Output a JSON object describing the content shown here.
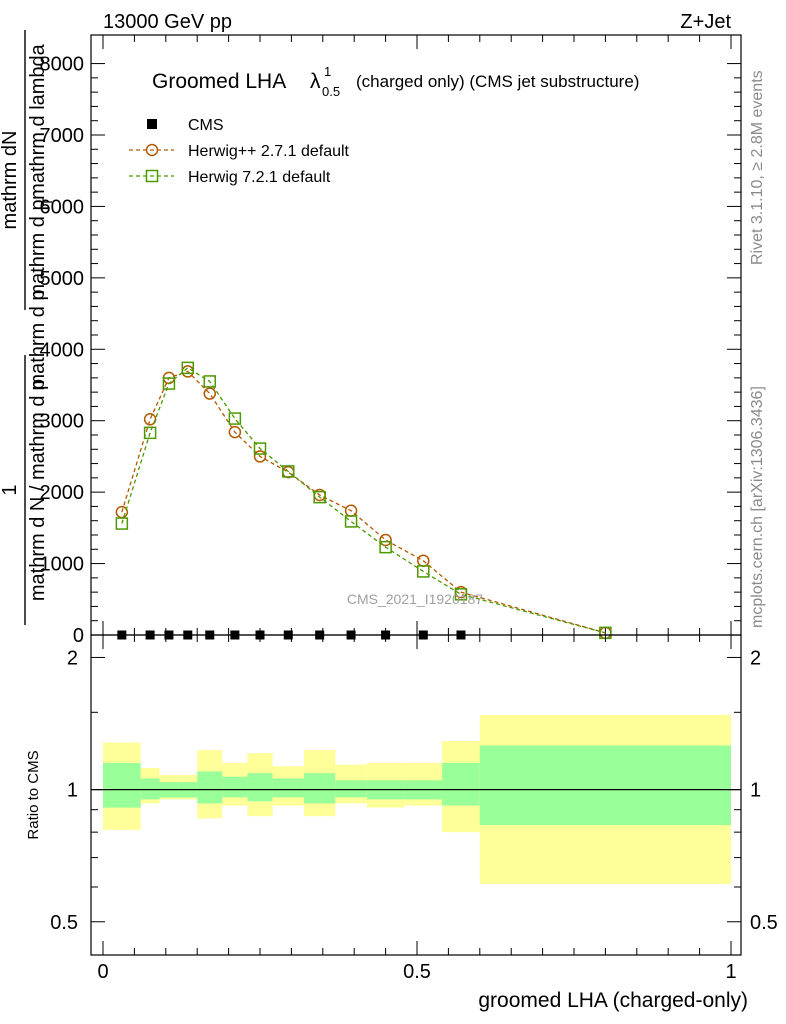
{
  "header": {
    "left": "13000 GeV pp",
    "right": "Z+Jet"
  },
  "side_labels": {
    "rivet": "Rivet 3.1.10, ≥ 2.8M events",
    "mcplots": "mcplots.cern.ch [arXiv:1306.3436]"
  },
  "main_ylabel": {
    "numerator_top": "1",
    "denominator_top": "mathrm d N / mathrm d p",
    "numerator_right": "mathrm dN",
    "denominator_right": "mathrm d p",
    "sub_t": "T",
    "tail": "mathrm d lambda",
    "frag_a": "mathrm d p",
    "frag_b": "mathrm d p"
  },
  "watermark": "CMS_2021_I1920187",
  "chart_data": [
    {
      "type": "line",
      "title": {
        "main": "Groomed LHA",
        "lambda": "λ",
        "sup": "1",
        "sub": "0.5",
        "suffix": "(charged only) (CMS jet substructure)"
      },
      "xlim": [
        0,
        1
      ],
      "ylim": [
        0,
        8400
      ],
      "x_ticks": [
        0,
        0.5,
        1
      ],
      "y_ticks": [
        0,
        1000,
        2000,
        3000,
        4000,
        5000,
        6000,
        7000,
        8000
      ],
      "y_tick_labels": [
        "0",
        "1000",
        "2000",
        "3000",
        "4000",
        "5000",
        "6000",
        "7000",
        "8000"
      ],
      "legend": [
        "CMS",
        "Herwig++ 2.7.1 default",
        "Herwig 7.2.1 default"
      ],
      "legend_position": "top-left",
      "series": [
        {
          "name": "CMS",
          "color": "#000000",
          "marker": "square-filled",
          "x": [
            0.03,
            0.075,
            0.105,
            0.135,
            0.17,
            0.21,
            0.25,
            0.295,
            0.345,
            0.395,
            0.45,
            0.51,
            0.57
          ],
          "y": [
            0,
            0,
            0,
            0,
            0,
            0,
            0,
            0,
            0,
            0,
            0,
            0,
            0
          ]
        },
        {
          "name": "Herwig++ 2.7.1 default",
          "color": "#b35900",
          "marker": "circle-open",
          "x": [
            0.03,
            0.075,
            0.105,
            0.135,
            0.17,
            0.21,
            0.25,
            0.295,
            0.345,
            0.395,
            0.45,
            0.51,
            0.57,
            0.8
          ],
          "y": [
            1720,
            3020,
            3600,
            3690,
            3380,
            2840,
            2500,
            2280,
            1960,
            1740,
            1330,
            1040,
            600,
            30
          ]
        },
        {
          "name": "Herwig 7.2.1 default",
          "color": "#4d9900",
          "marker": "square-open",
          "x": [
            0.03,
            0.075,
            0.105,
            0.135,
            0.17,
            0.21,
            0.25,
            0.295,
            0.345,
            0.395,
            0.45,
            0.51,
            0.57,
            0.8
          ],
          "y": [
            1560,
            2830,
            3520,
            3740,
            3550,
            3030,
            2610,
            2290,
            1930,
            1590,
            1230,
            890,
            570,
            30
          ]
        }
      ]
    },
    {
      "type": "area",
      "ylabel": "Ratio to CMS",
      "xlabel": "groomed LHA (charged-only)",
      "xlim": [
        0,
        1
      ],
      "ylim": [
        0.42,
        2.25
      ],
      "y_ticks": [
        0.5,
        1,
        2
      ],
      "y_tick_labels": [
        "0.5",
        "1",
        "2"
      ],
      "x_ticks": [
        0,
        0.5,
        1
      ],
      "x_tick_labels": [
        "0",
        "0.5",
        "1"
      ],
      "reference_line": 1,
      "colors": {
        "inner": "#99ff99",
        "outer": "#ffff99"
      },
      "bands": [
        {
          "x0": 0.0,
          "x1": 0.06,
          "inner": [
            0.91,
            1.15
          ],
          "outer": [
            0.81,
            1.28
          ]
        },
        {
          "x0": 0.06,
          "x1": 0.09,
          "inner": [
            0.95,
            1.06
          ],
          "outer": [
            0.93,
            1.12
          ]
        },
        {
          "x0": 0.09,
          "x1": 0.12,
          "inner": [
            0.96,
            1.04
          ],
          "outer": [
            0.95,
            1.08
          ]
        },
        {
          "x0": 0.12,
          "x1": 0.15,
          "inner": [
            0.96,
            1.04
          ],
          "outer": [
            0.95,
            1.08
          ]
        },
        {
          "x0": 0.15,
          "x1": 0.19,
          "inner": [
            0.93,
            1.1
          ],
          "outer": [
            0.86,
            1.23
          ]
        },
        {
          "x0": 0.19,
          "x1": 0.23,
          "inner": [
            0.96,
            1.07
          ],
          "outer": [
            0.92,
            1.15
          ]
        },
        {
          "x0": 0.23,
          "x1": 0.27,
          "inner": [
            0.94,
            1.09
          ],
          "outer": [
            0.87,
            1.21
          ]
        },
        {
          "x0": 0.27,
          "x1": 0.32,
          "inner": [
            0.96,
            1.06
          ],
          "outer": [
            0.92,
            1.13
          ]
        },
        {
          "x0": 0.32,
          "x1": 0.37,
          "inner": [
            0.93,
            1.09
          ],
          "outer": [
            0.87,
            1.23
          ]
        },
        {
          "x0": 0.37,
          "x1": 0.42,
          "inner": [
            0.96,
            1.05
          ],
          "outer": [
            0.93,
            1.14
          ]
        },
        {
          "x0": 0.42,
          "x1": 0.48,
          "inner": [
            0.95,
            1.05
          ],
          "outer": [
            0.91,
            1.15
          ]
        },
        {
          "x0": 0.48,
          "x1": 0.54,
          "inner": [
            0.95,
            1.05
          ],
          "outer": [
            0.92,
            1.15
          ]
        },
        {
          "x0": 0.54,
          "x1": 0.6,
          "inner": [
            0.92,
            1.15
          ],
          "outer": [
            0.8,
            1.29
          ]
        },
        {
          "x0": 0.6,
          "x1": 1.0,
          "inner": [
            0.83,
            1.26
          ],
          "outer": [
            0.61,
            1.48
          ]
        }
      ]
    }
  ]
}
